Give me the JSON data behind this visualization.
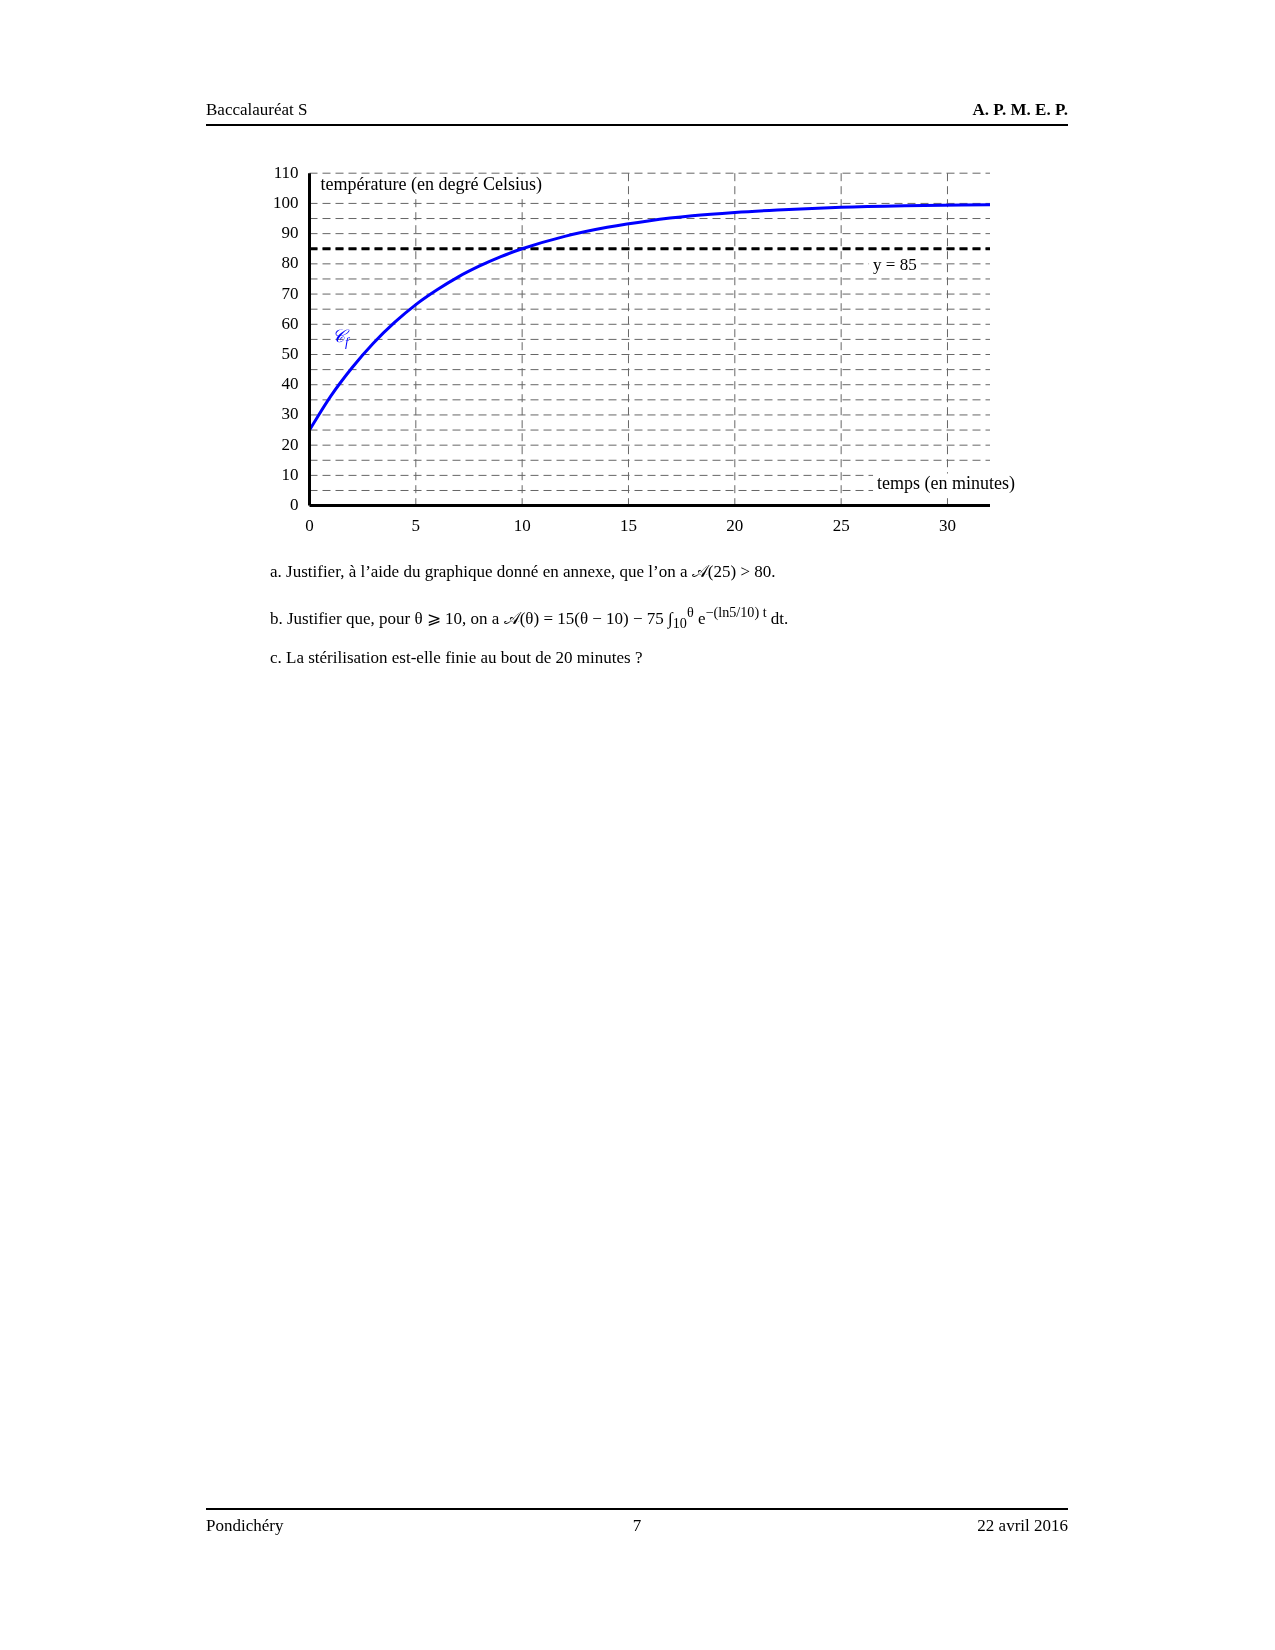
{
  "chart_data": {
    "type": "line",
    "title": null,
    "ylabel": "température (en degré Celsius)",
    "xlabel": "temps (en minutes)",
    "x": [
      0,
      1,
      2,
      3,
      4,
      5,
      6,
      7,
      8,
      9,
      10,
      12,
      14,
      16,
      18,
      20,
      22,
      25,
      28,
      32
    ],
    "series": [
      {
        "name": "𝒞$_{f}$",
        "color": "#0000ff",
        "values": [
          25,
          36.2,
          45.6,
          53.7,
          60.6,
          66.5,
          71.4,
          75.7,
          79.3,
          82.4,
          85,
          89.1,
          92.1,
          94.3,
          95.9,
          97,
          97.8,
          98.7,
          99.2,
          99.6
        ]
      }
    ],
    "xlim": [
      0,
      32
    ],
    "xticks": [
      0,
      5,
      10,
      15,
      20,
      25,
      30
    ],
    "ylim": [
      0,
      110
    ],
    "yticks": [
      0,
      {
        "value": 5,
        "label": null
      },
      10,
      {
        "value": 15,
        "label": null
      },
      20,
      {
        "value": 25,
        "label": null
      },
      30,
      {
        "value": 35,
        "label": null
      },
      40,
      {
        "value": 45,
        "label": null
      },
      50,
      {
        "value": 55,
        "label": null
      },
      60,
      {
        "value": 65,
        "label": null
      },
      70,
      {
        "value": 75,
        "label": null
      },
      80,
      {
        "value": 85,
        "label": null
      },
      90,
      {
        "value": 95,
        "label": null
      },
      100,
      110
    ],
    "ref_lines": [
      {
        "axis": "y",
        "value": 85,
        "label": "y = 85",
        "color": "#000000",
        "line_style": "dashed"
      }
    ],
    "grid": true,
    "legend": false,
    "marker": "none",
    "line_style": "solid",
    "annotations": [
      "Baccalauréat S",
      "A. P. M. E. P.",
      "a. Justifier, à l’aide du graphique donné en annexe, que l’on a 𝒜(25) > 80.",
      "b. Justifier que, pour θ ⩾ 10, on a 𝒜(θ) = 15(θ − 10) − 75 ∫$_{10}$$^{θ}$ e$^{−(ln5/10) t}$ dt.",
      "c. La stérilisation est-elle finie au bout de 20 minutes ?",
      "Pondichéry",
      "7",
      "22 avril 2016"
    ]
  }
}
